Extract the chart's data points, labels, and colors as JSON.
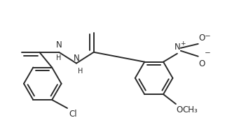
{
  "background_color": "#ffffff",
  "line_color": "#2a2a2a",
  "line_width": 1.4,
  "font_size": 8.5,
  "fig_width": 3.31,
  "fig_height": 1.92,
  "dpi": 100,
  "xlim": [
    0,
    3.31
  ],
  "ylim": [
    0,
    1.92
  ]
}
